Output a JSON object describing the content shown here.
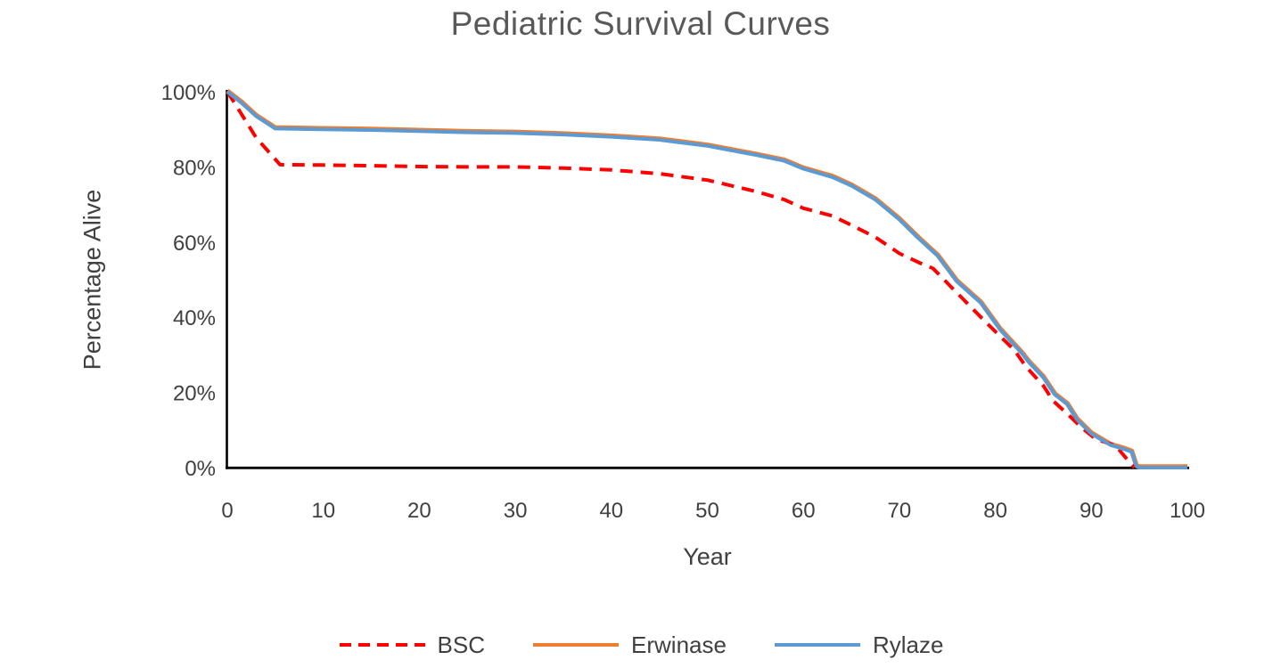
{
  "chart_data": {
    "type": "line",
    "title": "Pediatric Survival Curves",
    "xlabel": "Year",
    "ylabel": "Percentage Alive",
    "xlim": [
      0,
      100
    ],
    "ylim": [
      0,
      100
    ],
    "grid": false,
    "legend_position": "bottom",
    "axis_color": "#000000",
    "title_color": "#595959",
    "text_color": "#404040",
    "x_ticks": [
      0,
      10,
      20,
      30,
      40,
      50,
      60,
      70,
      80,
      90,
      100
    ],
    "y_ticks": [
      {
        "value": 0,
        "label": "0%"
      },
      {
        "value": 20,
        "label": "20%"
      },
      {
        "value": 40,
        "label": "40%"
      },
      {
        "value": 60,
        "label": "60%"
      },
      {
        "value": 80,
        "label": "80%"
      },
      {
        "value": 100,
        "label": "100%"
      }
    ],
    "series": [
      {
        "name": "BSC",
        "color": "#FF0000",
        "line_style": "dashed",
        "z": 2,
        "points": [
          [
            0,
            100
          ],
          [
            1,
            96
          ],
          [
            3,
            87.8
          ],
          [
            5.5,
            80.6
          ],
          [
            10,
            80.5
          ],
          [
            15,
            80.3
          ],
          [
            20,
            80.1
          ],
          [
            25,
            80
          ],
          [
            30,
            80
          ],
          [
            35,
            79.7
          ],
          [
            40,
            79.2
          ],
          [
            45,
            78.2
          ],
          [
            50,
            76.5
          ],
          [
            55,
            73.5
          ],
          [
            58,
            71.3
          ],
          [
            60,
            69
          ],
          [
            63,
            67
          ],
          [
            65,
            64.5
          ],
          [
            67.5,
            61.3
          ],
          [
            70,
            57
          ],
          [
            72,
            54.6
          ],
          [
            73.5,
            53
          ],
          [
            76,
            46.5
          ],
          [
            79,
            38.7
          ],
          [
            82,
            31.2
          ],
          [
            83.2,
            26.8
          ],
          [
            85,
            21.8
          ],
          [
            86,
            17.8
          ],
          [
            87.5,
            14.3
          ],
          [
            89,
            10.6
          ],
          [
            90.5,
            7.5
          ],
          [
            92.5,
            5.9
          ],
          [
            93.8,
            2
          ],
          [
            94.5,
            0
          ]
        ]
      },
      {
        "name": "Erwinase",
        "color": "#ED7D31",
        "line_style": "solid",
        "z": 1,
        "points": [
          [
            0,
            100
          ],
          [
            1.5,
            97
          ],
          [
            3,
            93.5
          ],
          [
            5,
            90.2
          ],
          [
            10,
            90
          ],
          [
            15,
            89.8
          ],
          [
            20,
            89.5
          ],
          [
            25,
            89.2
          ],
          [
            30,
            89
          ],
          [
            35,
            88.6
          ],
          [
            40,
            88
          ],
          [
            45,
            87.2
          ],
          [
            50,
            85.6
          ],
          [
            55,
            83.2
          ],
          [
            58,
            81.6
          ],
          [
            60,
            79.5
          ],
          [
            63,
            77.3
          ],
          [
            65,
            75
          ],
          [
            67.5,
            71.3
          ],
          [
            70,
            66
          ],
          [
            72,
            61
          ],
          [
            74,
            56.3
          ],
          [
            76,
            49.5
          ],
          [
            78.5,
            43.8
          ],
          [
            80.5,
            36.7
          ],
          [
            82.8,
            30.3
          ],
          [
            83.5,
            28
          ],
          [
            85,
            24
          ],
          [
            86.2,
            19.4
          ],
          [
            87.5,
            16.8
          ],
          [
            88.5,
            12.8
          ],
          [
            90,
            9
          ],
          [
            92,
            6
          ],
          [
            93.3,
            5
          ],
          [
            94.2,
            4.2
          ],
          [
            94.7,
            0.3
          ],
          [
            95,
            0
          ],
          [
            100,
            0
          ]
        ]
      },
      {
        "name": "Rylaze",
        "color": "#5B9BD5",
        "line_style": "solid",
        "z": 3,
        "points": [
          [
            0,
            100
          ],
          [
            1.5,
            97
          ],
          [
            3,
            93.5
          ],
          [
            5,
            90.2
          ],
          [
            10,
            90
          ],
          [
            15,
            89.8
          ],
          [
            20,
            89.5
          ],
          [
            25,
            89.2
          ],
          [
            30,
            89
          ],
          [
            35,
            88.6
          ],
          [
            40,
            88
          ],
          [
            45,
            87.2
          ],
          [
            50,
            85.6
          ],
          [
            55,
            83.2
          ],
          [
            58,
            81.6
          ],
          [
            60,
            79.5
          ],
          [
            63,
            77.3
          ],
          [
            65,
            75
          ],
          [
            67.5,
            71.3
          ],
          [
            70,
            66
          ],
          [
            72,
            61
          ],
          [
            74,
            56.3
          ],
          [
            76,
            49.5
          ],
          [
            78.5,
            43.8
          ],
          [
            80.5,
            36.7
          ],
          [
            82.8,
            30.3
          ],
          [
            83.5,
            28
          ],
          [
            85,
            24
          ],
          [
            86.2,
            19.4
          ],
          [
            87.5,
            16.8
          ],
          [
            88.5,
            12.8
          ],
          [
            90,
            9
          ],
          [
            92,
            6
          ],
          [
            93.3,
            5
          ],
          [
            94.2,
            4.2
          ],
          [
            94.7,
            0.3
          ],
          [
            95,
            0
          ],
          [
            100,
            0
          ]
        ]
      }
    ]
  }
}
